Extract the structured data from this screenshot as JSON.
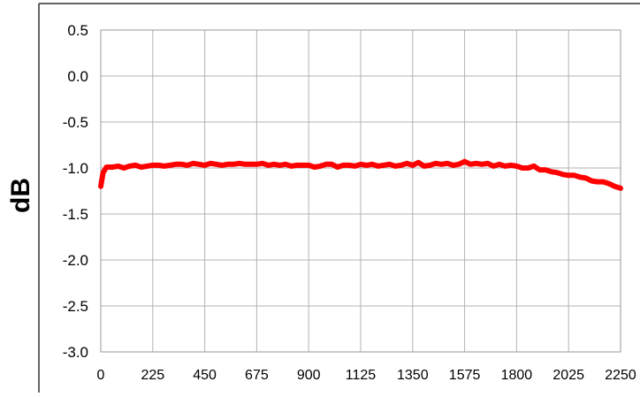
{
  "chart_data": {
    "type": "line",
    "title": "",
    "xlabel": "",
    "ylabel": "dB",
    "xlim": [
      0,
      2250
    ],
    "ylim": [
      -3.0,
      0.5
    ],
    "x_ticks": [
      "0",
      "225",
      "450",
      "675",
      "900",
      "1125",
      "1350",
      "1575",
      "1800",
      "2025",
      "2250"
    ],
    "y_ticks": [
      "0.5",
      "0.0",
      "-0.5",
      "-1.0",
      "-1.5",
      "-2.0",
      "-2.5",
      "-3.0"
    ],
    "grid": true,
    "legend": "none",
    "series": [
      {
        "color": "#ff0000",
        "x": [
          0,
          10,
          25,
          50,
          75,
          100,
          125,
          150,
          175,
          200,
          225,
          250,
          275,
          300,
          325,
          350,
          375,
          400,
          425,
          450,
          475,
          500,
          525,
          550,
          575,
          600,
          625,
          650,
          675,
          700,
          725,
          750,
          775,
          800,
          825,
          850,
          875,
          900,
          925,
          950,
          975,
          1000,
          1025,
          1050,
          1075,
          1100,
          1125,
          1150,
          1175,
          1200,
          1225,
          1250,
          1275,
          1300,
          1325,
          1350,
          1375,
          1400,
          1425,
          1450,
          1475,
          1500,
          1525,
          1550,
          1575,
          1600,
          1625,
          1650,
          1675,
          1700,
          1725,
          1750,
          1775,
          1800,
          1825,
          1850,
          1875,
          1900,
          1925,
          1950,
          1975,
          2000,
          2025,
          2050,
          2075,
          2100,
          2125,
          2150,
          2175,
          2200,
          2225,
          2250
        ],
        "y": [
          -1.2,
          -1.05,
          -0.99,
          -0.99,
          -0.98,
          -1.0,
          -0.98,
          -0.97,
          -0.99,
          -0.98,
          -0.97,
          -0.97,
          -0.98,
          -0.97,
          -0.96,
          -0.96,
          -0.97,
          -0.95,
          -0.96,
          -0.97,
          -0.95,
          -0.96,
          -0.97,
          -0.96,
          -0.96,
          -0.95,
          -0.96,
          -0.96,
          -0.96,
          -0.95,
          -0.97,
          -0.96,
          -0.97,
          -0.96,
          -0.98,
          -0.97,
          -0.97,
          -0.97,
          -0.99,
          -0.98,
          -0.96,
          -0.96,
          -0.99,
          -0.97,
          -0.97,
          -0.98,
          -0.96,
          -0.97,
          -0.96,
          -0.98,
          -0.97,
          -0.96,
          -0.98,
          -0.97,
          -0.95,
          -0.97,
          -0.94,
          -0.98,
          -0.97,
          -0.95,
          -0.96,
          -0.95,
          -0.97,
          -0.96,
          -0.93,
          -0.96,
          -0.95,
          -0.96,
          -0.95,
          -0.98,
          -0.96,
          -0.98,
          -0.97,
          -0.98,
          -1.0,
          -1.0,
          -0.98,
          -1.02,
          -1.02,
          -1.04,
          -1.05,
          -1.07,
          -1.08,
          -1.08,
          -1.1,
          -1.11,
          -1.14,
          -1.15,
          -1.15,
          -1.17,
          -1.2,
          -1.22
        ]
      }
    ]
  }
}
